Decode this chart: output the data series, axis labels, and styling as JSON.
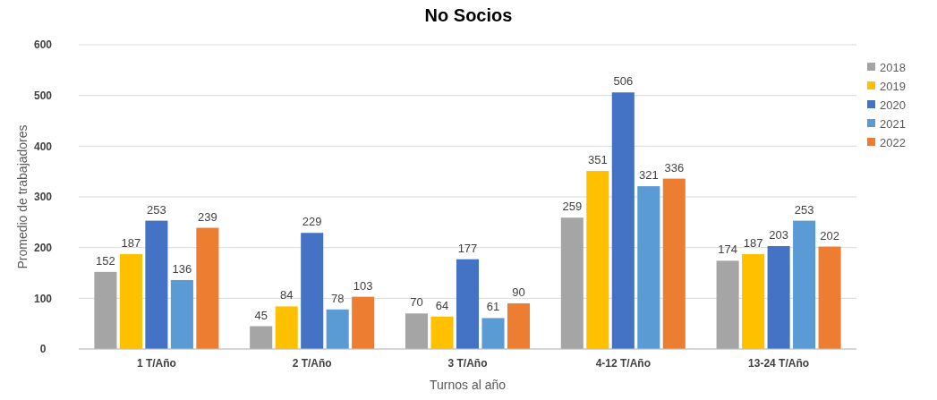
{
  "chart_data": {
    "type": "bar",
    "title": "No Socios",
    "xlabel": "Turnos al año",
    "ylabel": "Promedio de trabajadores",
    "categories": [
      "1 T/Año",
      "2 T/Año",
      "3 T/Año",
      "4-12 T/Año",
      "13-24 T/Año"
    ],
    "series": [
      {
        "name": "2018",
        "color": "#a5a5a5",
        "values": [
          152,
          45,
          70,
          259,
          174
        ]
      },
      {
        "name": "2019",
        "color": "#ffc000",
        "values": [
          187,
          84,
          64,
          351,
          187
        ]
      },
      {
        "name": "2020",
        "color": "#4472c4",
        "values": [
          253,
          229,
          177,
          506,
          203
        ]
      },
      {
        "name": "2021",
        "color": "#5b9bd5",
        "values": [
          136,
          78,
          61,
          321,
          253
        ]
      },
      {
        "name": "2022",
        "color": "#ed7d31",
        "values": [
          239,
          103,
          90,
          336,
          202
        ]
      }
    ],
    "ylim": [
      0,
      600
    ],
    "yticks": [
      0,
      100,
      200,
      300,
      400,
      500,
      600
    ],
    "grid": "y",
    "legend": "right",
    "data_labels": true
  }
}
